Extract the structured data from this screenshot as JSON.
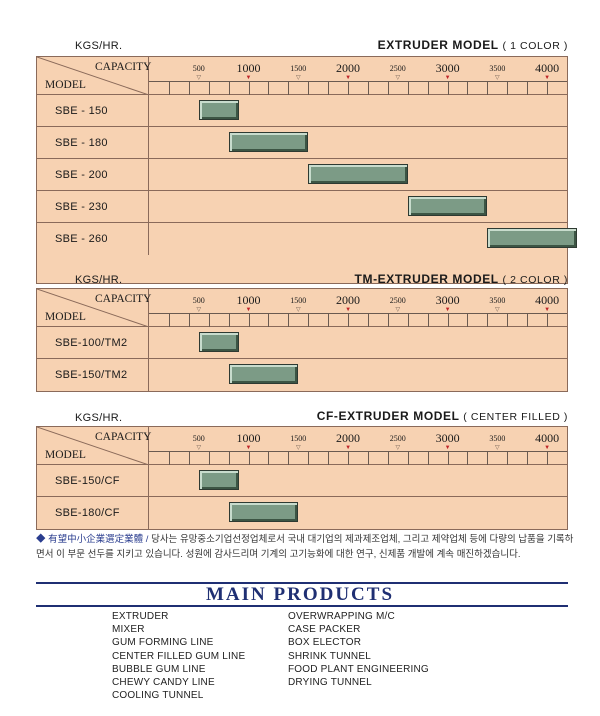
{
  "sections": [
    {
      "unit": "KGS/HR.",
      "title": "EXTRUDER MODEL",
      "subtitle": "( 1 COLOR )",
      "header": {
        "capacity": "CAPACITY",
        "model": "MODEL"
      },
      "models": [
        {
          "name": "SBE - 150",
          "range": [
            500,
            900
          ]
        },
        {
          "name": "SBE - 180",
          "range": [
            800,
            1600
          ]
        },
        {
          "name": "SBE - 200",
          "range": [
            1600,
            2600
          ]
        },
        {
          "name": "SBE - 230",
          "range": [
            2600,
            3400
          ]
        },
        {
          "name": "SBE - 260",
          "range": [
            3400,
            4300
          ]
        }
      ]
    },
    {
      "unit": "KGS/HR.",
      "title": "TM-EXTRUDER MODEL",
      "subtitle": "( 2 COLOR )",
      "header": {
        "capacity": "CAPACITY",
        "model": "MODEL"
      },
      "models": [
        {
          "name": "SBE-100/TM2",
          "range": [
            500,
            900
          ]
        },
        {
          "name": "SBE-150/TM2",
          "range": [
            800,
            1500
          ]
        }
      ]
    },
    {
      "unit": "KGS/HR.",
      "title": "CF-EXTRUDER MODEL",
      "subtitle": "( CENTER FILLED )",
      "header": {
        "capacity": "CAPACITY",
        "model": "MODEL"
      },
      "models": [
        {
          "name": "SBE-150/CF",
          "range": [
            500,
            900
          ]
        },
        {
          "name": "SBE-180/CF",
          "range": [
            800,
            1500
          ]
        }
      ]
    }
  ],
  "scale": {
    "min": 0,
    "max": 4200,
    "labels": [
      {
        "value": 500,
        "text": "500",
        "size": "small",
        "marker": "open"
      },
      {
        "value": 1000,
        "text": "1000",
        "size": "big",
        "marker": "red"
      },
      {
        "value": 1500,
        "text": "1500",
        "size": "small",
        "marker": "open"
      },
      {
        "value": 2000,
        "text": "2000",
        "size": "big",
        "marker": "red"
      },
      {
        "value": 2500,
        "text": "2500",
        "size": "small",
        "marker": "open"
      },
      {
        "value": 3000,
        "text": "3000",
        "size": "big",
        "marker": "red"
      },
      {
        "value": 3500,
        "text": "3500",
        "size": "small",
        "marker": "open"
      },
      {
        "value": 4000,
        "text": "4000",
        "size": "big",
        "marker": "red"
      }
    ],
    "marker_colors": {
      "red": "#c0262a",
      "open": "#6a5a50"
    }
  },
  "note": {
    "star": "◆",
    "lead": "有望中小企業選定業體 /",
    "text": "당사는 유망중소기업선정업체로서 국내 대기업의 제과제조업체, 그리고 제약업체 등에 다량의 납품을 기록하면서 이 부문 선두를 지키고 있습니다. 성원에 감사드리며 기계의 고기능화에 대한 연구, 신제품 개발에 계속 매진하겠습니다."
  },
  "main_products": {
    "title": "MAIN PRODUCTS",
    "left": [
      "EXTRUDER",
      "MIXER",
      "GUM FORMING LINE",
      "CENTER FILLED GUM LINE",
      "BUBBLE GUM LINE",
      "CHEWY CANDY LINE",
      "COOLING TUNNEL"
    ],
    "right": [
      "OVERWRAPPING M/C",
      "CASE PACKER",
      "BOX ELECTOR",
      "SHRINK TUNNEL",
      "FOOD PLANT ENGINEERING",
      "DRYING TUNNEL"
    ]
  },
  "colors": {
    "table_bg": "#f7d2b2",
    "bar": "#7c9b86",
    "accent": "#1f2f73"
  }
}
